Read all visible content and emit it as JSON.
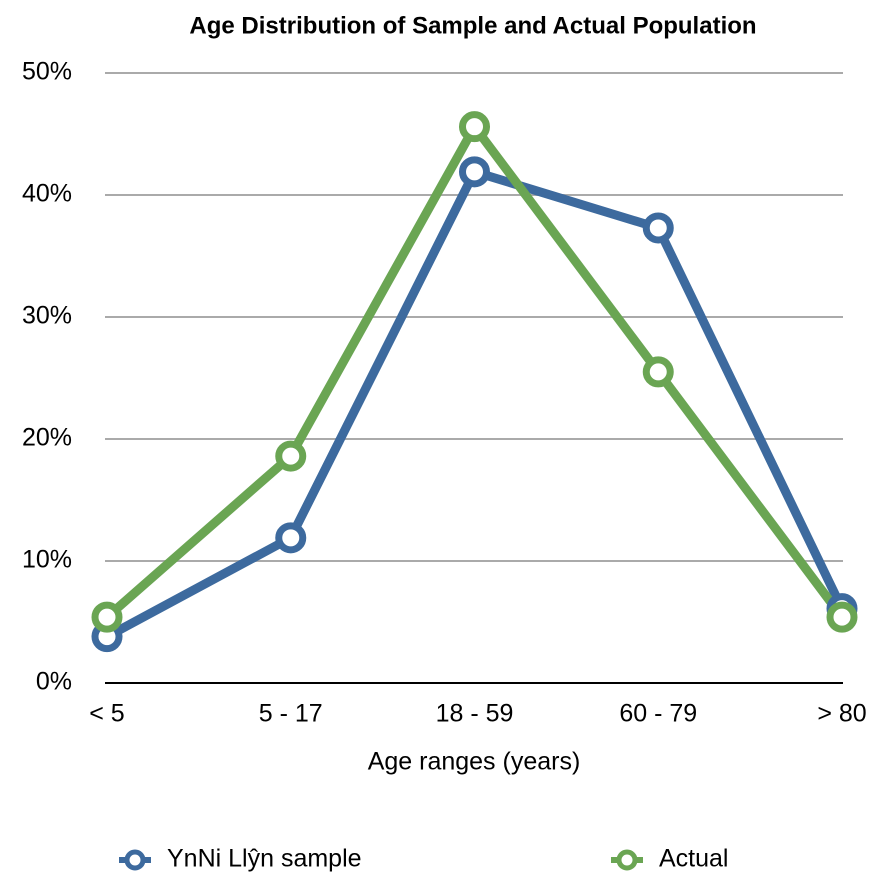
{
  "chart_data": {
    "type": "line",
    "title": "Age Distribution of Sample and Actual Population",
    "x_label": "Age ranges (years)",
    "categories": [
      "< 5",
      "5 - 17",
      "18 - 59",
      "60 - 79",
      "> 80"
    ],
    "series": [
      {
        "name": "YnNi Llŷn sample",
        "color": "#3d6a9e",
        "values": [
          3.8,
          11.9,
          41.9,
          37.3,
          6.1
        ]
      },
      {
        "name": "Actual",
        "color": "#6aa553",
        "values": [
          5.4,
          18.6,
          45.6,
          25.5,
          5.4
        ]
      }
    ],
    "ylim": [
      0,
      50
    ],
    "yticks": [
      {
        "value": 0,
        "label": "0%"
      },
      {
        "value": 10,
        "label": "10%"
      },
      {
        "value": 20,
        "label": "20%"
      },
      {
        "value": 30,
        "label": "30%"
      },
      {
        "value": 40,
        "label": "40%"
      },
      {
        "value": 50,
        "label": "50%"
      }
    ],
    "grid": true,
    "legend": "bottom"
  }
}
